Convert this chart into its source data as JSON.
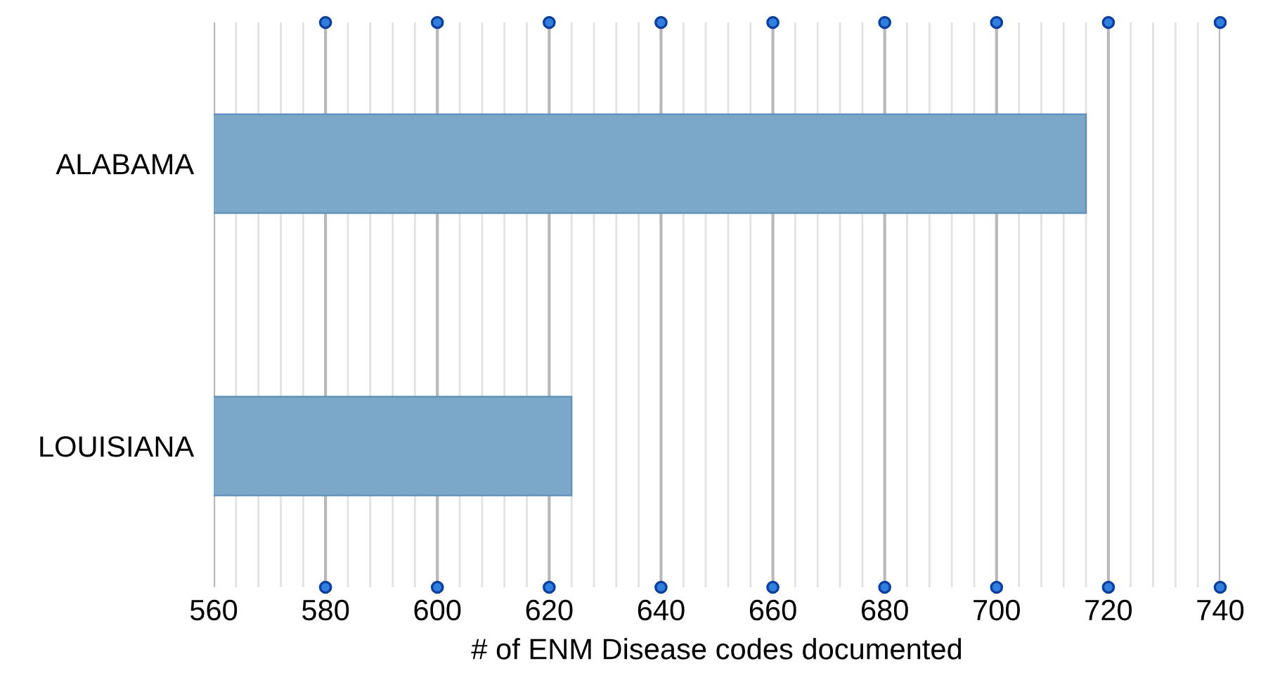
{
  "chart_data": {
    "type": "bar",
    "orientation": "horizontal",
    "categories": [
      "ALABAMA",
      "LOUISIANA"
    ],
    "values": [
      716,
      624
    ],
    "color": "#7ba7c9",
    "xlabel": "# of ENM Disease codes documented",
    "xlim": [
      560,
      740
    ],
    "xticks": [
      560,
      580,
      600,
      620,
      640,
      660,
      680,
      700,
      720,
      740
    ],
    "grid": "x"
  }
}
